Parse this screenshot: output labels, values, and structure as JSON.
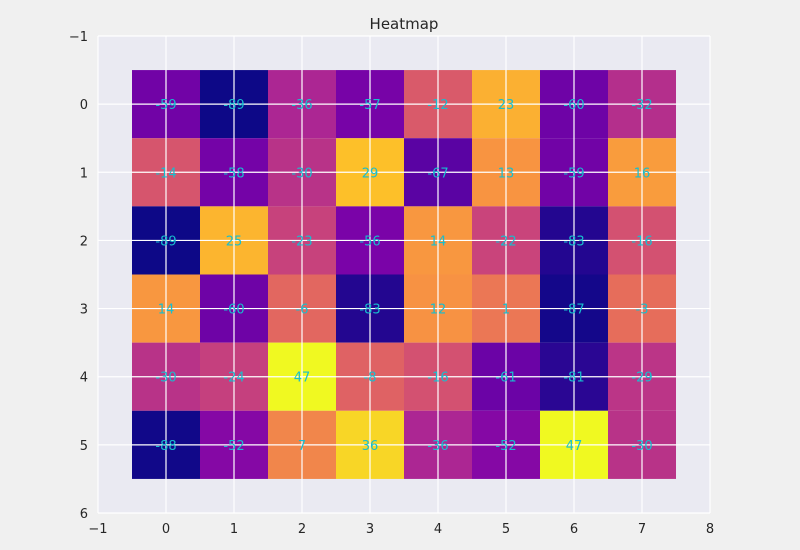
{
  "chart_data": {
    "type": "heatmap",
    "title": "Heatmap",
    "xlabel": "",
    "ylabel": "",
    "xlim": [
      -1,
      8
    ],
    "ylim": [
      6,
      -1
    ],
    "x_ticks": [
      -1,
      0,
      1,
      2,
      3,
      4,
      5,
      6,
      7,
      8
    ],
    "y_ticks": [
      -1,
      0,
      1,
      2,
      3,
      4,
      5,
      6
    ],
    "grid": true,
    "colormap": "plasma",
    "value_range": [
      -89,
      47
    ],
    "annotation_color": "#17becf",
    "values": [
      [
        -59,
        -89,
        -36,
        -57,
        -12,
        23,
        -60,
        -32
      ],
      [
        -14,
        -58,
        -30,
        29,
        -67,
        13,
        -59,
        16
      ],
      [
        -89,
        25,
        -23,
        -56,
        14,
        -22,
        -83,
        -16
      ],
      [
        14,
        -60,
        -6,
        -83,
        12,
        1,
        -87,
        -3
      ],
      [
        -30,
        -24,
        47,
        -8,
        -16,
        -61,
        -81,
        -29
      ],
      [
        -88,
        -52,
        7,
        36,
        -36,
        -52,
        47,
        -30
      ]
    ],
    "labels": [
      [
        "-59",
        "-89",
        "-36",
        "-57",
        "-12",
        "23",
        "-60",
        "-32"
      ],
      [
        "-14",
        "-58",
        "-30",
        "29",
        "-67",
        "13",
        "-59",
        "16"
      ],
      [
        "-89",
        "25",
        "-23",
        "-56",
        "14",
        "-22",
        "-83",
        "-16"
      ],
      [
        "14",
        "-60",
        "-6",
        "-83",
        "12",
        "1",
        "-87",
        "-3"
      ],
      [
        "-30",
        "-24",
        "47",
        "-8",
        "-16",
        "-61",
        "-81",
        "-29"
      ],
      [
        "-88",
        "-52",
        "7",
        "36",
        "-36",
        "-52",
        "47",
        "-30"
      ]
    ]
  }
}
